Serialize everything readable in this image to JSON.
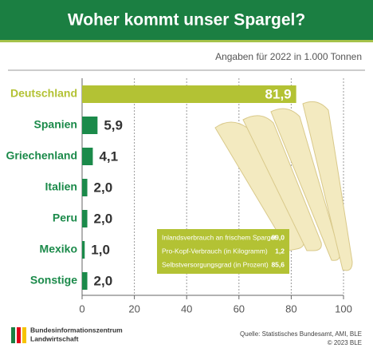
{
  "chart_data": {
    "type": "hbar",
    "title": "Woher kommt unser Spargel?",
    "subtitle": "Angaben für 2022 in 1.000 Tonnen",
    "categories": [
      "Deutschland",
      "Spanien",
      "Griechenland",
      "Italien",
      "Peru",
      "Mexiko",
      "Sonstige"
    ],
    "values": [
      81.9,
      5.9,
      4.1,
      2.0,
      2.0,
      1.0,
      2.0
    ],
    "value_labels": [
      "81,9",
      "5,9",
      "4,1",
      "2,0",
      "2,0",
      "1,0",
      "2,0"
    ],
    "colors": [
      "#b3c234",
      "#1b8a4a",
      "#1b8a4a",
      "#1b8a4a",
      "#1b8a4a",
      "#1b8a4a",
      "#1b8a4a"
    ],
    "xlim": [
      0,
      100
    ],
    "xticks": [
      0,
      20,
      40,
      60,
      80,
      100
    ],
    "grid": true,
    "info_box": [
      {
        "label": "Inlandsverbrauch an frischem Spargel",
        "value": "99,0"
      },
      {
        "label": "Pro-Kopf-Verbrauch (in Kilogramm)",
        "value": "1,2"
      },
      {
        "label": "Selbstversorgungsgrad (in Prozent)",
        "value": "85,6"
      }
    ],
    "footer": {
      "org_line1": "Bundesinformationszentrum",
      "org_line2": "Landwirtschaft",
      "source": "Quelle: Statistisches Bundesamt, AMI, BLE",
      "copyright": "© 2023 BLE"
    }
  }
}
